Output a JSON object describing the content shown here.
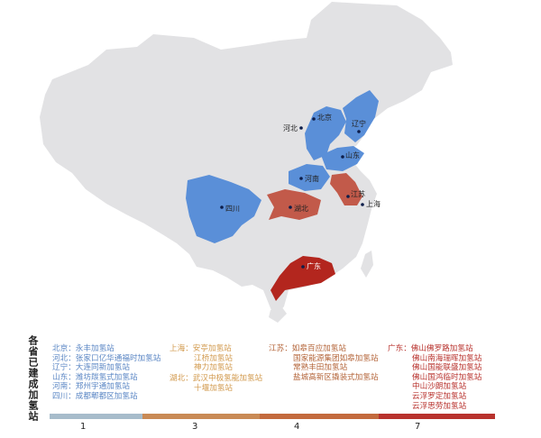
{
  "map": {
    "colors": {
      "land": "#e2e2e4",
      "blue": "#5a8fd8",
      "red": "#b83a32",
      "marker": "#0d1d4a"
    },
    "labels": {
      "beijing": "北京",
      "hebei": "河北",
      "liaoning": "辽宁",
      "shandong": "山东",
      "henan": "河南",
      "jiangsu": "江苏",
      "shanghai": "上海",
      "hubei": "湖北",
      "sichuan": "四川",
      "guangdong": "广东"
    }
  },
  "legend": {
    "title": "各省已建成加氢站",
    "groups": [
      {
        "items": [
          "北京：永丰加氢站",
          "河北：张家口亿华通福时加氢站",
          "辽宁：大连同新加氢站",
          "山东：潍坊羰氢式加氢站",
          "河南：郑州宇通加氢站",
          "四川：成都郫都区加氢站"
        ]
      },
      {
        "items": [
          "上海：安亭加氢站",
          "江桥加氢站",
          "神力加氢站"
        ]
      },
      {
        "items": [
          "湖北：武汉中极氢能加氢站",
          "十堰加氢站"
        ]
      },
      {
        "items": [
          "江苏：如皋百应加氢站",
          "国家能源集团如皋加氢站",
          "常熟丰田加氢站",
          "盐城高新区撬装式加氢站"
        ]
      },
      {
        "items": [
          "广东：佛山佛罗路加氢站",
          "佛山南海瑞晖加氢站",
          "佛山国能联盛加氢站",
          "佛山国鸿临时加氢站",
          "中山沙朗加氢站",
          "云浮罗定加氢站",
          "云浮思劳加氢站"
        ]
      }
    ],
    "scale": {
      "labels": [
        "1",
        "3",
        "4",
        "7"
      ],
      "colors": [
        "#a7bccb",
        "#c98a55",
        "#c36a3d",
        "#b8322d"
      ]
    }
  }
}
